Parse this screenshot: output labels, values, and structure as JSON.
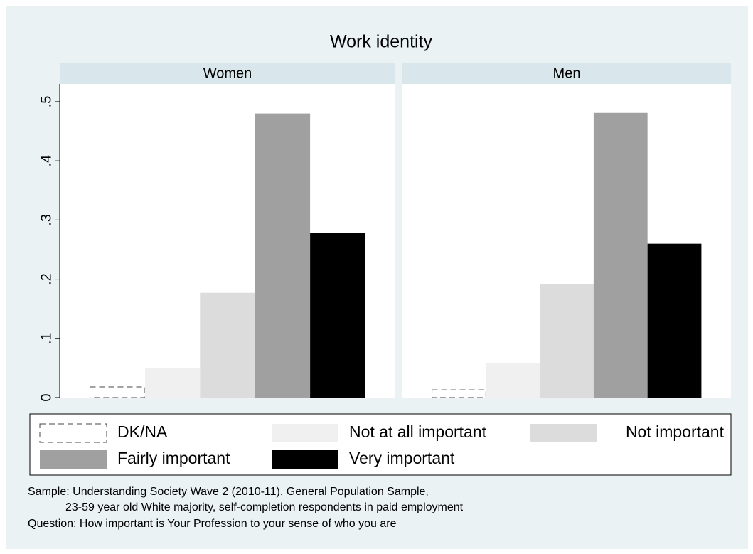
{
  "chart_data": {
    "type": "bar",
    "title": "Work identity",
    "categories": [
      "Women",
      "Men"
    ],
    "series": [
      {
        "name": "DK/NA",
        "color": "none",
        "values": [
          0.018,
          0.013
        ]
      },
      {
        "name": "Not at all important",
        "color": "#f0f0f0",
        "values": [
          0.05,
          0.058
        ]
      },
      {
        "name": "Not important",
        "color": "#dcdcdc",
        "values": [
          0.177,
          0.192
        ]
      },
      {
        "name": "Fairly important",
        "color": "#a0a0a0",
        "values": [
          0.48,
          0.481
        ]
      },
      {
        "name": "Very important",
        "color": "#000000",
        "values": [
          0.278,
          0.26
        ]
      }
    ],
    "ylim": [
      0,
      0.53
    ],
    "yticks": [
      0,
      {
        "value": 0.1,
        "label": ".1"
      },
      {
        "value": 0.2,
        "label": ".2"
      },
      {
        "value": 0.3,
        "label": ".3"
      },
      {
        "value": 0.4,
        "label": ".4"
      },
      {
        "value": 0.5,
        "label": ".5"
      }
    ],
    "grid": false,
    "notes": [
      "Sample: Understanding Society Wave 2 (2010-11), General Population Sample,",
      "23-59 year old White majority, self-completion respondents in paid employment",
      "Question: How important is Your Profession to your sense of who you are"
    ]
  }
}
